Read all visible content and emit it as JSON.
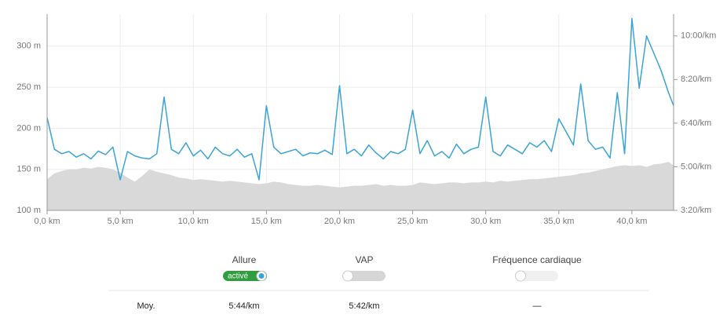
{
  "chart_data": {
    "type": "line",
    "x": [
      0,
      0.5,
      1,
      1.5,
      2,
      2.5,
      3,
      3.5,
      4,
      4.5,
      5,
      5.5,
      6,
      6.5,
      7,
      7.5,
      8,
      8.5,
      9,
      9.5,
      10,
      10.5,
      11,
      11.5,
      12,
      12.5,
      13,
      13.5,
      14,
      14.5,
      15,
      15.5,
      16,
      16.5,
      17,
      17.5,
      18,
      18.5,
      19,
      19.5,
      20,
      20.5,
      21,
      21.5,
      22,
      22.5,
      23,
      23.5,
      24,
      24.5,
      25,
      25.5,
      26,
      26.5,
      27,
      27.5,
      28,
      28.5,
      29,
      29.5,
      30,
      30.5,
      31,
      31.5,
      32,
      32.5,
      33,
      33.5,
      34,
      34.5,
      35,
      35.5,
      36,
      36.5,
      37,
      37.5,
      38,
      38.5,
      39,
      39.5,
      40,
      40.5,
      41,
      41.5,
      42,
      42.5,
      42.85
    ],
    "series": [
      {
        "kind": "area",
        "color": "#d9d9d9",
        "axis": "y",
        "values": [
          138,
          145,
          148,
          150,
          150,
          152,
          151,
          153,
          152,
          150,
          146,
          140,
          135,
          142,
          150,
          147,
          145,
          143,
          140,
          139,
          137,
          138,
          137,
          136,
          135,
          136,
          135,
          134,
          133,
          132,
          133,
          135,
          134,
          132,
          131,
          130,
          130,
          131,
          130,
          129,
          128,
          129,
          130,
          130,
          131,
          132,
          130,
          131,
          130,
          130,
          131,
          134,
          133,
          132,
          133,
          134,
          134,
          133,
          134,
          134,
          135,
          134,
          136,
          135,
          136,
          137,
          138,
          138,
          139,
          140,
          141,
          142,
          143,
          145,
          146,
          148,
          150,
          152,
          154,
          155,
          154,
          155,
          153,
          156,
          157,
          159,
          155
        ]
      },
      {
        "kind": "line",
        "color": "#3aa3d8",
        "axis": "y2",
        "values": [
          413,
          340,
          330,
          335,
          322,
          330,
          318,
          336,
          328,
          345,
          270,
          335,
          325,
          320,
          318,
          330,
          460,
          340,
          330,
          355,
          325,
          338,
          318,
          345,
          330,
          325,
          340,
          322,
          330,
          270,
          440,
          345,
          330,
          335,
          340,
          325,
          332,
          330,
          338,
          328,
          486,
          330,
          340,
          325,
          350,
          332,
          318,
          335,
          330,
          340,
          430,
          330,
          360,
          325,
          335,
          320,
          352,
          330,
          340,
          345,
          460,
          335,
          325,
          350,
          340,
          330,
          355,
          345,
          360,
          335,
          410,
          380,
          350,
          490,
          360,
          340,
          345,
          320,
          470,
          330,
          640,
          480,
          600,
          560,
          520,
          470,
          440
        ]
      }
    ],
    "xlim": [
      0,
      42.85
    ],
    "xticks": [
      {
        "value": 0,
        "label": "0,0 km"
      },
      {
        "value": 5,
        "label": "5,0 km"
      },
      {
        "value": 10,
        "label": "10,0 km"
      },
      {
        "value": 15,
        "label": "15,0 km"
      },
      {
        "value": 20,
        "label": "20,0 km"
      },
      {
        "value": 25,
        "label": "25,0 km"
      },
      {
        "value": 30,
        "label": "30,0 km"
      },
      {
        "value": 35,
        "label": "35,0 km"
      },
      {
        "value": 40,
        "label": "40,0 km"
      }
    ],
    "ylim": [
      100,
      339
    ],
    "yticks": [
      {
        "value": 100,
        "label": "100 m"
      },
      {
        "value": 150,
        "label": "150 m"
      },
      {
        "value": 200,
        "label": "200 m"
      },
      {
        "value": 250,
        "label": "250 m"
      },
      {
        "value": 300,
        "label": "300 m"
      }
    ],
    "y2lim": [
      200,
      650
    ],
    "y2ticks": [
      {
        "value": 200,
        "label": "3:20/km"
      },
      {
        "value": 300,
        "label": "5:00/km"
      },
      {
        "value": 400,
        "label": "6:40/km"
      },
      {
        "value": 500,
        "label": "8:20/km"
      },
      {
        "value": 600,
        "label": "10:00/km"
      }
    ],
    "grid": true
  },
  "controls": [
    {
      "label": "Allure",
      "state": "activé"
    },
    {
      "label": "VAP"
    },
    {
      "label": "Fréquence cardiaque"
    }
  ],
  "summary": {
    "label": "Moy.",
    "values": [
      "5:44/km",
      "5:42/km",
      "—"
    ]
  }
}
